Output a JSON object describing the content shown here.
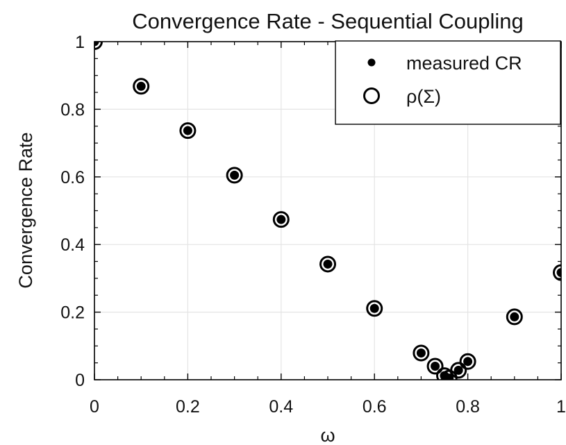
{
  "chart_data": {
    "type": "scatter",
    "title": "Convergence Rate - Sequential Coupling",
    "xlabel": "ω",
    "ylabel": "Convergence Rate",
    "xlim": [
      0,
      1
    ],
    "ylim": [
      0,
      1
    ],
    "x_ticks": [
      0,
      0.2,
      0.4,
      0.6,
      0.8,
      1
    ],
    "x_tick_labels": [
      "0",
      "0.2",
      "0.4",
      "0.6",
      "0.8",
      "1"
    ],
    "y_ticks": [
      0,
      0.2,
      0.4,
      0.6,
      0.8,
      1
    ],
    "y_tick_labels": [
      "0",
      "0.2",
      "0.4",
      "0.6",
      "0.8",
      "1"
    ],
    "grid": true,
    "legend_position": "top-right",
    "series": [
      {
        "name": "measured CR",
        "marker": "filled-dot",
        "x": [
          0,
          0.1,
          0.2,
          0.3,
          0.4,
          0.5,
          0.6,
          0.7,
          0.73,
          0.75,
          0.76,
          0.78,
          0.8,
          0.9,
          1.0
        ],
        "y": [
          1.0,
          0.868,
          0.737,
          0.605,
          0.474,
          0.342,
          0.211,
          0.079,
          0.04,
          0.012,
          0.005,
          0.028,
          0.054,
          0.186,
          0.317
        ]
      },
      {
        "name": "ρ(Σ)",
        "marker": "open-circle",
        "x": [
          0,
          0.1,
          0.2,
          0.3,
          0.4,
          0.5,
          0.6,
          0.7,
          0.73,
          0.75,
          0.76,
          0.78,
          0.8,
          0.9,
          1.0
        ],
        "y": [
          1.0,
          0.868,
          0.737,
          0.605,
          0.474,
          0.342,
          0.211,
          0.079,
          0.04,
          0.012,
          0.005,
          0.028,
          0.054,
          0.186,
          0.317
        ]
      }
    ],
    "colors": {
      "marker": "#000000",
      "axis": "#000000",
      "grid": "#e4e4e4"
    }
  }
}
